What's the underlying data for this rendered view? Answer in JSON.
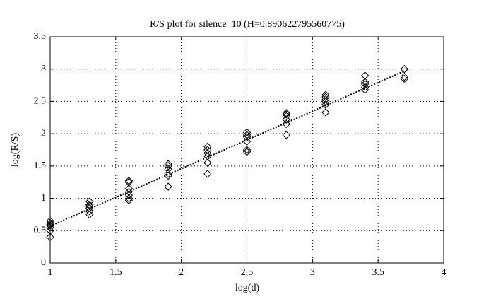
{
  "chart_data": {
    "type": "scatter",
    "title": "R/S plot for silence_10 (H=0.890622795560775)",
    "x_label": "log(d)",
    "y_label": "log(R/S)",
    "xlim": [
      1,
      4
    ],
    "ylim": [
      0,
      3.5
    ],
    "xticks": [
      1,
      1.5,
      2,
      2.5,
      3,
      3.5,
      4
    ],
    "yticks": [
      0,
      0.5,
      1,
      1.5,
      2,
      2.5,
      3,
      3.5
    ],
    "grid": true,
    "series": [
      {
        "type": "scatter",
        "marker": "diamond",
        "color": "#000000",
        "x": [
          1,
          1,
          1,
          1,
          1,
          1,
          1,
          1.3,
          1.3,
          1.3,
          1.3,
          1.3,
          1.3,
          1.6,
          1.6,
          1.6,
          1.6,
          1.6,
          1.6,
          1.6,
          1.9,
          1.9,
          1.9,
          1.9,
          1.9,
          1.9,
          2.2,
          2.2,
          2.2,
          2.2,
          2.2,
          2.2,
          2.5,
          2.5,
          2.5,
          2.5,
          2.5,
          2.5,
          2.8,
          2.8,
          2.8,
          2.8,
          2.8,
          2.8,
          3.1,
          3.1,
          3.1,
          3.1,
          3.1,
          3.1,
          3.4,
          3.4,
          3.4,
          3.4,
          3.4,
          3.7,
          3.7,
          3.7
        ],
        "values": [
          0.65,
          0.62,
          0.6,
          0.58,
          0.55,
          0.5,
          0.4,
          0.95,
          0.9,
          0.88,
          0.85,
          0.8,
          0.75,
          1.27,
          1.25,
          1.15,
          1.1,
          1.05,
          1.0,
          0.97,
          1.53,
          1.5,
          1.45,
          1.38,
          1.35,
          1.18,
          1.8,
          1.75,
          1.7,
          1.65,
          1.55,
          1.38,
          2.02,
          1.98,
          1.95,
          1.88,
          1.75,
          1.72,
          2.32,
          2.3,
          2.27,
          2.22,
          2.15,
          1.98,
          2.6,
          2.57,
          2.53,
          2.5,
          2.45,
          2.33,
          2.9,
          2.8,
          2.77,
          2.72,
          2.68,
          3.0,
          2.88,
          2.85
        ]
      },
      {
        "type": "line",
        "style": "dotted",
        "color": "#000000",
        "x": [
          1,
          3.7
        ],
        "values": [
          0.57,
          2.97
        ]
      }
    ]
  }
}
